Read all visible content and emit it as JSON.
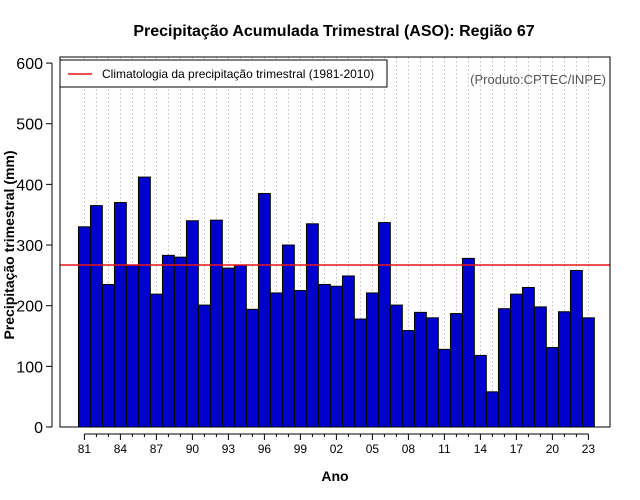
{
  "chart_data": {
    "type": "bar",
    "title": "Precipitação Acumulada Trimestral (ASO): Região 67",
    "xlabel": "Ano",
    "ylabel": "Precipitação trimestral (mm)",
    "ylim": [
      0,
      610
    ],
    "yticks": [
      0,
      100,
      200,
      300,
      400,
      500,
      600
    ],
    "categories": [
      "1981",
      "1982",
      "1983",
      "1984",
      "1985",
      "1986",
      "1987",
      "1988",
      "1989",
      "1990",
      "1991",
      "1992",
      "1993",
      "1994",
      "1995",
      "1996",
      "1997",
      "1998",
      "1999",
      "2000",
      "2001",
      "2002",
      "2003",
      "2004",
      "2005",
      "2006",
      "2007",
      "2008",
      "2009",
      "2010",
      "2011",
      "2012",
      "2013",
      "2014",
      "2015",
      "2016",
      "2017",
      "2018",
      "2019",
      "2020",
      "2021",
      "2022",
      "2023"
    ],
    "xtick_labels": [
      "81",
      "84",
      "87",
      "90",
      "93",
      "96",
      "99",
      "02",
      "05",
      "08",
      "11",
      "14",
      "17",
      "20",
      "23"
    ],
    "xtick_every": 3,
    "values": [
      330,
      365,
      235,
      370,
      267,
      412,
      219,
      283,
      280,
      340,
      201,
      341,
      262,
      267,
      194,
      385,
      221,
      300,
      225,
      335,
      235,
      232,
      249,
      178,
      221,
      337,
      201,
      159,
      189,
      180,
      128,
      187,
      278,
      118,
      58,
      195,
      219,
      230,
      198,
      131,
      190,
      258,
      180
    ],
    "bar_color": "#0000cc",
    "climatology": {
      "value": 267,
      "color": "#e8161b",
      "legend_label": "Climatologia da precipitação trimestral (1981-2010)"
    },
    "legend_position": "top-left",
    "source_note": "(Produto:CPTEC/INPE)",
    "grid": "vertical-dotted"
  }
}
